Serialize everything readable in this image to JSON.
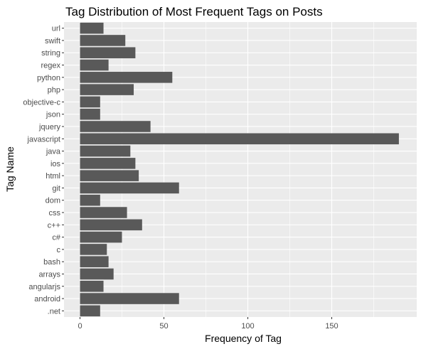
{
  "chart_data": {
    "type": "bar",
    "orientation": "horizontal",
    "title": "Tag Distribution of Most Frequent Tags on Posts",
    "xlabel": "Frequency of Tag",
    "ylabel": "Tag Name",
    "xlim": [
      0,
      200
    ],
    "xticks": [
      0,
      50,
      100,
      150
    ],
    "grid": true,
    "legend": "none",
    "categories": [
      ".net",
      "android",
      "angularjs",
      "arrays",
      "bash",
      "c",
      "c#",
      "c++",
      "css",
      "dom",
      "git",
      "html",
      "ios",
      "java",
      "javascript",
      "jquery",
      "json",
      "objective-c",
      "php",
      "python",
      "regex",
      "string",
      "swift",
      "url"
    ],
    "values": [
      12,
      59,
      14,
      20,
      17,
      16,
      25,
      37,
      28,
      12,
      59,
      35,
      33,
      30,
      190,
      42,
      12,
      12,
      32,
      55,
      17,
      33,
      27,
      14
    ],
    "colors": {
      "panel": "#ebebeb",
      "grid": "#ffffff",
      "bar": "#595959",
      "tick_text": "#4d4d4d"
    }
  }
}
